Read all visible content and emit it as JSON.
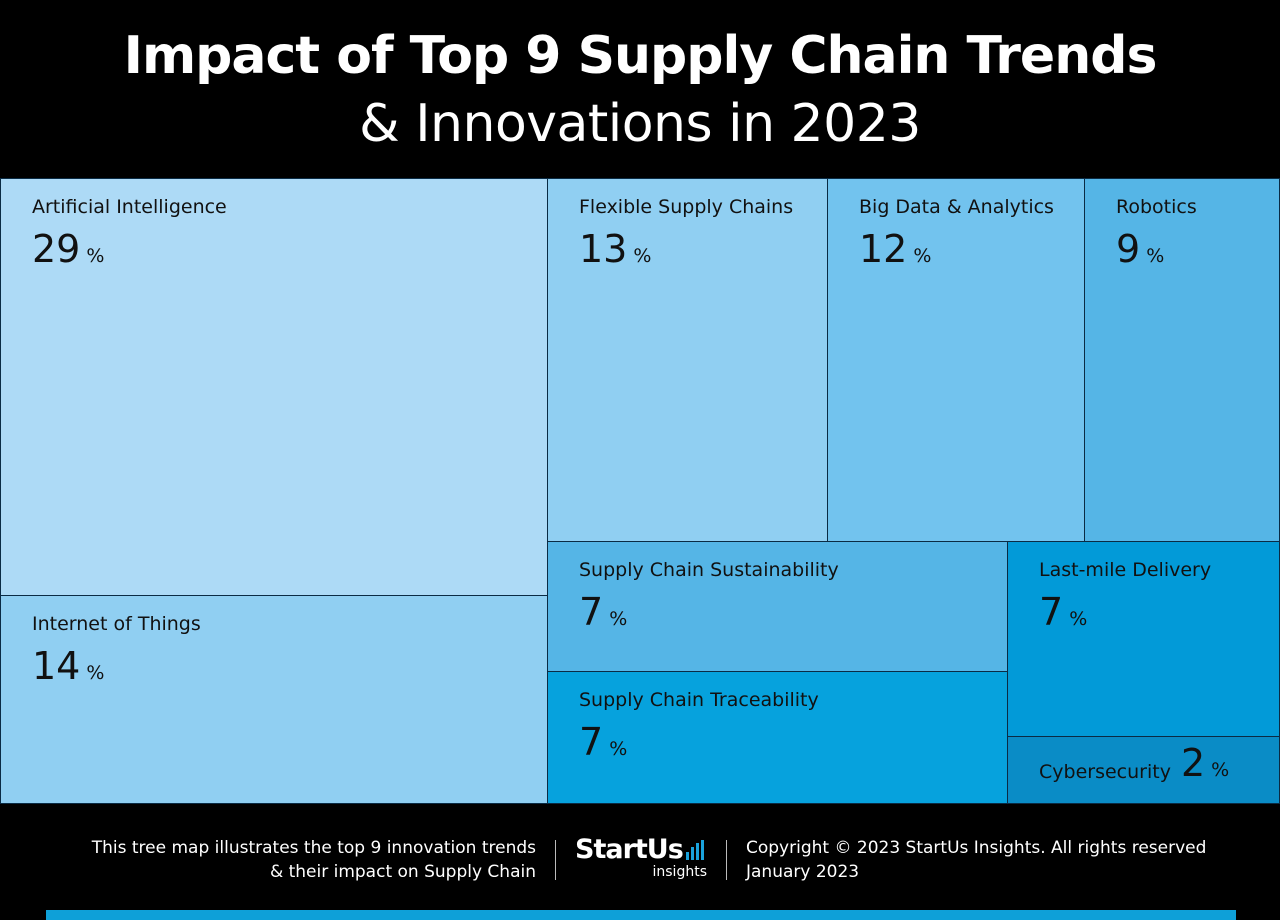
{
  "header": {
    "title_line1": "Impact of Top 9 Supply Chain Trends",
    "title_line2": "& Innovations in 2023"
  },
  "chart_data": {
    "type": "treemap",
    "unit": "%",
    "items": [
      {
        "name": "Artificial Intelligence",
        "value": 29,
        "color": "#addaf6"
      },
      {
        "name": "Internet of Things",
        "value": 14,
        "color": "#90cff2"
      },
      {
        "name": "Flexible Supply Chains",
        "value": 13,
        "color": "#90cff2"
      },
      {
        "name": "Big Data & Analytics",
        "value": 12,
        "color": "#72c3ee"
      },
      {
        "name": "Robotics",
        "value": 9,
        "color": "#55b5e6"
      },
      {
        "name": "Supply Chain Sustainability",
        "value": 7,
        "color": "#55b5e6"
      },
      {
        "name": "Last-mile Delivery",
        "value": 7,
        "color": "#029ad8"
      },
      {
        "name": "Supply Chain Traceability",
        "value": 7,
        "color": "#06a2dd"
      },
      {
        "name": "Cybersecurity",
        "value": 2,
        "color": "#0a8cc6"
      }
    ]
  },
  "footer": {
    "description_line1": "This tree map illustrates the top 9 innovation trends",
    "description_line2": "& their impact on Supply Chain",
    "logo_main": "StartUs",
    "logo_sub": "insights",
    "copyright": "Copyright © 2023 StartUs Insights. All rights reserved",
    "date": "January 2023"
  }
}
